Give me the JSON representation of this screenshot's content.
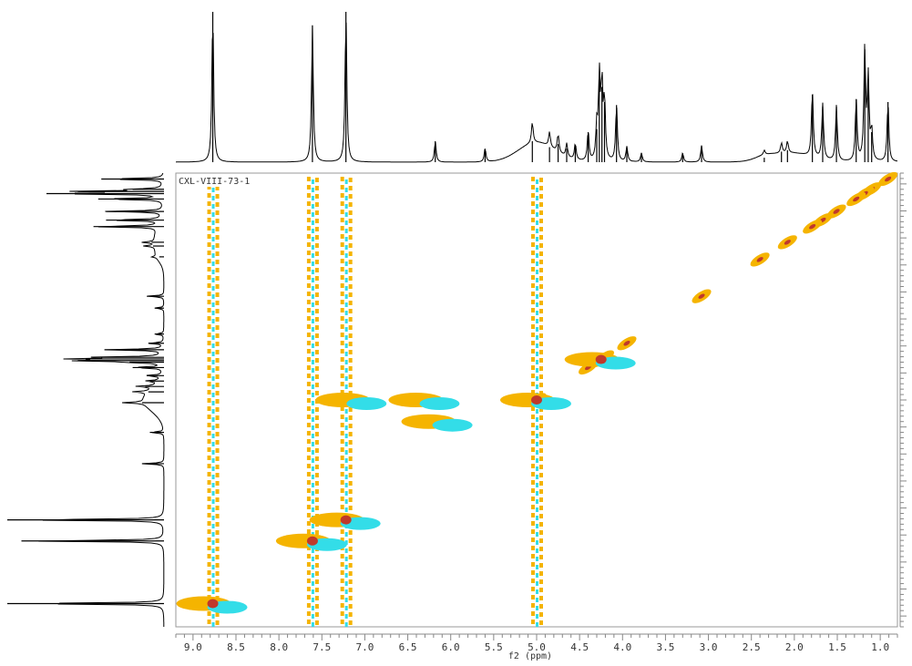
{
  "chart_data": {
    "type": "2d-nmr-contour",
    "sample_label": "CXL-VIII-73-1",
    "xlabel": "f2 (ppm)",
    "x_ticks": [
      "9.0",
      "8.5",
      "8.0",
      "7.5",
      "7.0",
      "6.5",
      "6.0",
      "5.5",
      "5.0",
      "4.5",
      "4.0",
      "3.5",
      "3.0",
      "2.5",
      "2.0",
      "1.5",
      "1.0"
    ],
    "xlim": [
      9.2,
      0.8
    ],
    "colors": {
      "positive": "#f5b400",
      "negative": "#33dde8",
      "core": "#c0392b",
      "axis": "#888888",
      "trace": "#000000"
    },
    "proton_peaks": [
      {
        "ppm": 8.77,
        "h": 1.0
      },
      {
        "ppm": 7.61,
        "h": 0.91
      },
      {
        "ppm": 7.22,
        "h": 1.0
      },
      {
        "ppm": 6.18,
        "h": 0.14
      },
      {
        "ppm": 5.6,
        "h": 0.09
      },
      {
        "ppm": 5.05,
        "h": 0.14
      },
      {
        "ppm": 4.85,
        "h": 0.1
      },
      {
        "ppm": 4.75,
        "h": 0.12
      },
      {
        "ppm": 4.65,
        "h": 0.09
      },
      {
        "ppm": 4.55,
        "h": 0.11
      },
      {
        "ppm": 4.4,
        "h": 0.2
      },
      {
        "ppm": 4.3,
        "h": 0.22
      },
      {
        "ppm": 4.27,
        "h": 0.55
      },
      {
        "ppm": 4.24,
        "h": 0.5
      },
      {
        "ppm": 4.21,
        "h": 0.4
      },
      {
        "ppm": 4.07,
        "h": 0.38
      },
      {
        "ppm": 3.95,
        "h": 0.1
      },
      {
        "ppm": 3.78,
        "h": 0.06
      },
      {
        "ppm": 3.3,
        "h": 0.06
      },
      {
        "ppm": 3.08,
        "h": 0.11
      },
      {
        "ppm": 2.35,
        "h": 0.03
      },
      {
        "ppm": 2.15,
        "h": 0.07
      },
      {
        "ppm": 2.08,
        "h": 0.08
      },
      {
        "ppm": 1.79,
        "h": 0.45
      },
      {
        "ppm": 1.67,
        "h": 0.37
      },
      {
        "ppm": 1.51,
        "h": 0.37
      },
      {
        "ppm": 1.28,
        "h": 0.42
      },
      {
        "ppm": 1.18,
        "h": 0.75
      },
      {
        "ppm": 1.14,
        "h": 0.55
      },
      {
        "ppm": 1.1,
        "h": 0.2
      },
      {
        "ppm": 0.91,
        "h": 0.4
      }
    ],
    "broad_humps": [
      {
        "ppm": 5.0,
        "h": 0.13,
        "w": 0.3
      },
      {
        "ppm": 2.05,
        "h": 0.06,
        "w": 0.35
      },
      {
        "ppm": 2.35,
        "h": 0.02,
        "w": 0.15
      }
    ],
    "diagonal_spots": [
      0.91,
      1.1,
      1.18,
      1.28,
      1.51,
      1.67,
      1.79,
      2.08,
      2.4,
      3.08,
      3.95,
      4.21,
      4.27,
      4.4,
      5.0
    ],
    "solvent_streaks": [
      8.77,
      7.61,
      7.22,
      5.0
    ],
    "cross_peaks": [
      {
        "x": 8.77,
        "y": 8.77,
        "core": true
      },
      {
        "x": 7.61,
        "y": 7.61,
        "core": true
      },
      {
        "x": 7.22,
        "y": 7.22,
        "core": true
      },
      {
        "x": 5.0,
        "y": 5.0,
        "core": true
      },
      {
        "x": 6.3,
        "y": 5.0,
        "core": false
      },
      {
        "x": 7.15,
        "y": 5.0,
        "core": false
      },
      {
        "x": 6.15,
        "y": 5.4,
        "core": false
      },
      {
        "x": 4.25,
        "y": 4.25,
        "core": true
      }
    ]
  }
}
